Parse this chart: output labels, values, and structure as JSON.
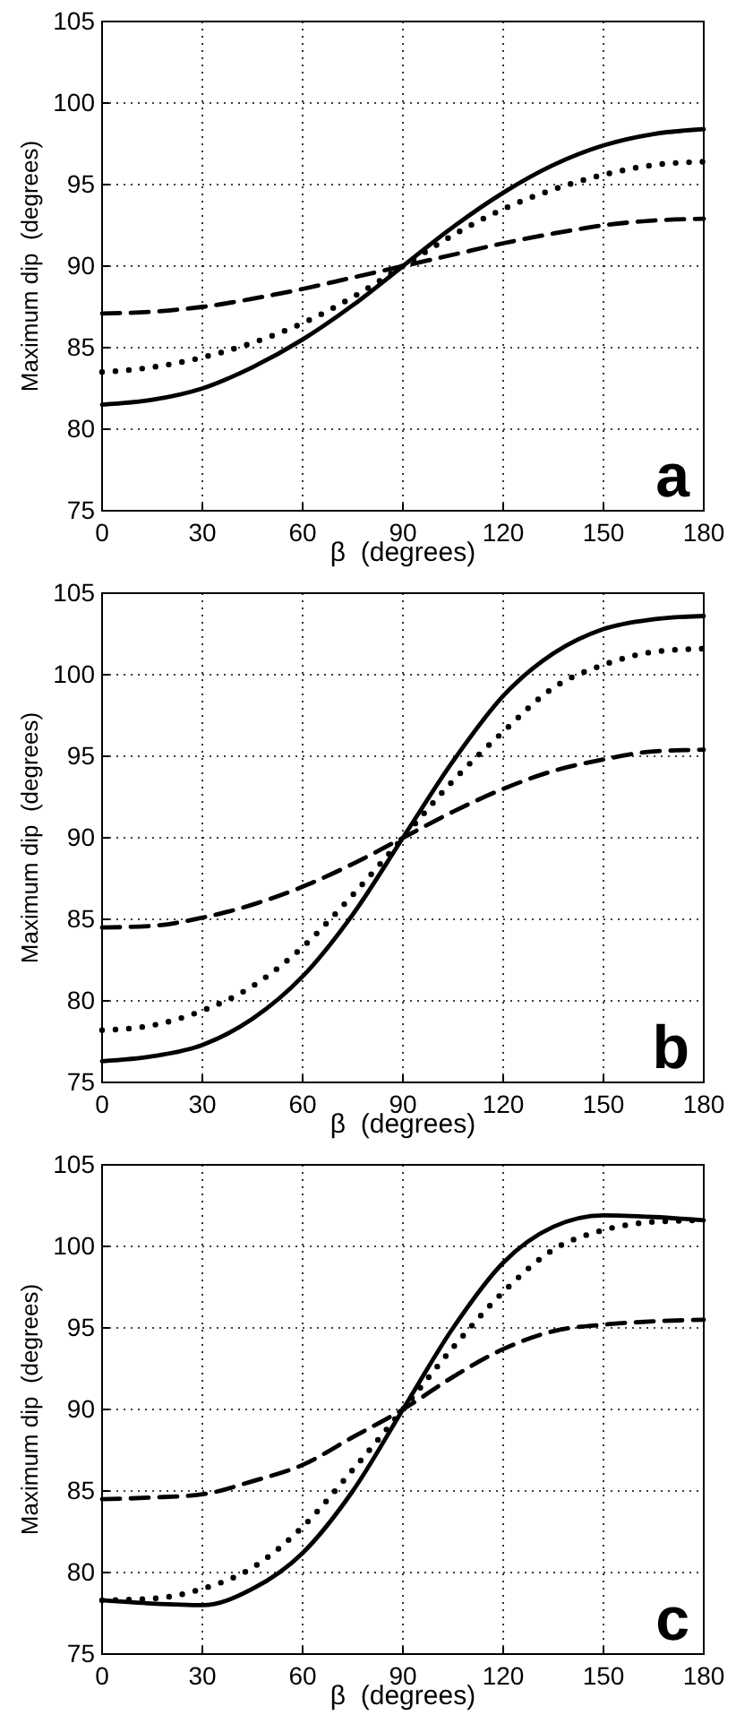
{
  "chart_data": [
    {
      "type": "line",
      "x": [
        0,
        15,
        30,
        45,
        60,
        75,
        90,
        105,
        120,
        135,
        150,
        165,
        180
      ],
      "xlabel": "β  (degrees)",
      "ylabel": "Maximum dip  (degrees)",
      "xlim": [
        0,
        180
      ],
      "xticks": [
        0,
        30,
        60,
        90,
        120,
        150,
        180
      ],
      "ylim": [
        75,
        105
      ],
      "yticks": [
        75,
        80,
        85,
        90,
        95,
        100,
        105
      ],
      "grid": true,
      "annotations": [
        "a"
      ],
      "series": [
        {
          "color": "#000000",
          "line_style": "solid",
          "values": [
            81.5,
            81.8,
            82.5,
            83.8,
            85.5,
            87.6,
            90,
            92.4,
            94.5,
            96.2,
            97.4,
            98.1,
            98.4
          ]
        },
        {
          "color": "#000000",
          "line_style": "dotted",
          "values": [
            83.5,
            83.8,
            84.4,
            85.3,
            86.5,
            88.1,
            90,
            91.9,
            93.5,
            94.7,
            95.6,
            96.2,
            96.4
          ]
        },
        {
          "color": "#000000",
          "line_style": "dashed",
          "values": [
            87.1,
            87.2,
            87.5,
            88.0,
            88.6,
            89.3,
            90,
            90.7,
            91.4,
            92.0,
            92.5,
            92.8,
            92.9
          ]
        }
      ]
    },
    {
      "type": "line",
      "x": [
        0,
        15,
        30,
        45,
        60,
        75,
        90,
        105,
        120,
        135,
        150,
        165,
        180
      ],
      "xlabel": "β  (degrees)",
      "ylabel": "Maximum dip  (degrees)",
      "xlim": [
        0,
        180
      ],
      "xticks": [
        0,
        30,
        60,
        90,
        120,
        150,
        180
      ],
      "ylim": [
        75,
        105
      ],
      "yticks": [
        75,
        80,
        85,
        90,
        95,
        100,
        105
      ],
      "grid": true,
      "annotations": [
        "b"
      ],
      "series": [
        {
          "color": "#000000",
          "line_style": "solid",
          "values": [
            76.3,
            76.6,
            77.3,
            78.9,
            81.5,
            85.3,
            90,
            94.7,
            98.7,
            101.3,
            102.8,
            103.4,
            103.6
          ]
        },
        {
          "color": "#000000",
          "line_style": "dotted",
          "values": [
            78.2,
            78.5,
            79.4,
            80.9,
            83.3,
            86.5,
            90,
            93.5,
            96.5,
            99.2,
            100.6,
            101.4,
            101.6
          ]
        },
        {
          "color": "#000000",
          "line_style": "dashed",
          "values": [
            84.5,
            84.6,
            85.1,
            85.9,
            87.0,
            88.4,
            90,
            91.6,
            93.0,
            94.1,
            94.8,
            95.3,
            95.4
          ]
        }
      ]
    },
    {
      "type": "line",
      "x": [
        0,
        15,
        30,
        45,
        60,
        75,
        90,
        105,
        120,
        135,
        150,
        165,
        180
      ],
      "xlabel": "β  (degrees)",
      "ylabel": "Maximum dip  (degrees)",
      "xlim": [
        0,
        180
      ],
      "xticks": [
        0,
        30,
        60,
        90,
        120,
        150,
        180
      ],
      "ylim": [
        75,
        105
      ],
      "yticks": [
        75,
        80,
        85,
        90,
        95,
        100,
        105
      ],
      "grid": true,
      "annotations": [
        "c"
      ],
      "series": [
        {
          "color": "#000000",
          "line_style": "solid",
          "values": [
            78.3,
            78.1,
            78.0,
            79.0,
            81.2,
            85.0,
            90,
            95.0,
            99.0,
            101.2,
            101.9,
            101.8,
            101.6
          ]
        },
        {
          "color": "#000000",
          "line_style": "dotted",
          "values": [
            78.3,
            78.4,
            79.0,
            80.3,
            82.8,
            86.3,
            90,
            93.8,
            97.2,
            99.8,
            101.0,
            101.5,
            101.6
          ]
        },
        {
          "color": "#000000",
          "line_style": "dashed",
          "values": [
            84.5,
            84.6,
            84.8,
            85.6,
            86.6,
            88.3,
            90,
            92.0,
            93.7,
            94.8,
            95.2,
            95.4,
            95.5
          ]
        }
      ]
    }
  ]
}
